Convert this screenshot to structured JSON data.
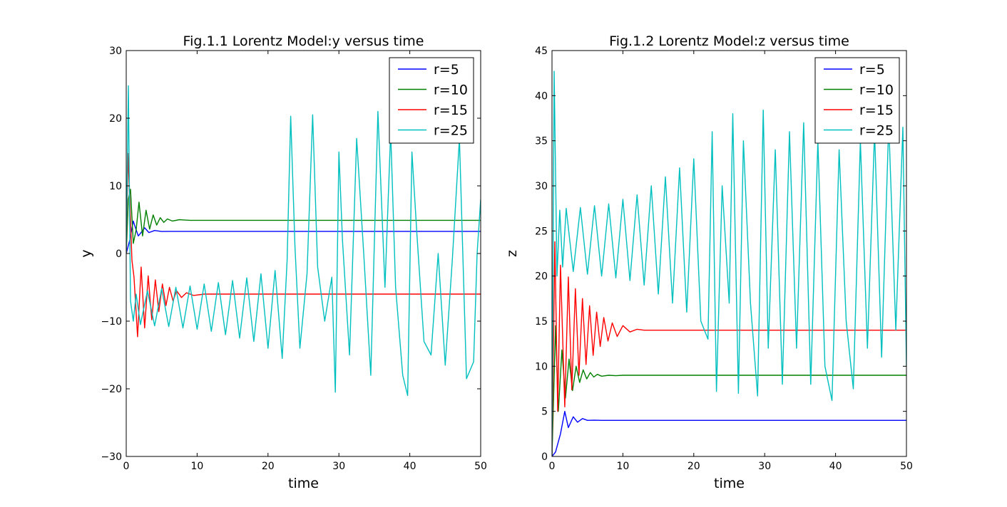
{
  "chart_data": [
    {
      "type": "line",
      "title": "Fig.1.1 Lorentz Model:y versus time",
      "xlabel": "time",
      "ylabel": "y",
      "xlim": [
        0,
        50
      ],
      "ylim": [
        -30,
        30
      ],
      "xticks": [
        0,
        10,
        20,
        30,
        40,
        50
      ],
      "yticks": [
        -30,
        -20,
        -10,
        0,
        10,
        20,
        30
      ],
      "ytick_labels": [
        "−30",
        "−20",
        "−10",
        "0",
        "10",
        "20",
        "30"
      ],
      "legend": "top-right",
      "grid": false,
      "series": [
        {
          "name": "r=5",
          "color": "#0000ff",
          "x": [
            0,
            0.5,
            1,
            1.3,
            1.7,
            2.1,
            2.6,
            3.2,
            4,
            5,
            6,
            50
          ],
          "y": [
            0,
            2,
            4.8,
            3.8,
            2.6,
            3.1,
            3.8,
            3.1,
            3.4,
            3.25,
            3.27,
            3.27
          ]
        },
        {
          "name": "r=10",
          "color": "#008000",
          "x": [
            0,
            0.3,
            0.6,
            1.0,
            1.4,
            1.8,
            2.3,
            2.8,
            3.3,
            3.8,
            4.3,
            4.8,
            5.3,
            5.8,
            6.5,
            7.5,
            9,
            50
          ],
          "y": [
            0,
            8,
            9.5,
            1.5,
            3.5,
            7.6,
            2.6,
            6.4,
            3.6,
            5.7,
            4.2,
            5.3,
            4.6,
            5.1,
            4.8,
            5.0,
            4.9,
            4.9
          ]
        },
        {
          "name": "r=15",
          "color": "#ff0000",
          "x": [
            0,
            0.25,
            0.5,
            0.8,
            1.1,
            1.6,
            2.1,
            2.6,
            3.1,
            3.6,
            4.1,
            4.6,
            5.1,
            5.6,
            6.1,
            6.6,
            7.1,
            7.8,
            8.5,
            9.5,
            11,
            50
          ],
          "y": [
            0,
            14.8,
            8,
            -1,
            -3.5,
            -12.3,
            -2,
            -11,
            -3.3,
            -9.8,
            -3.9,
            -8.6,
            -4.5,
            -7.7,
            -5.0,
            -7.0,
            -5.5,
            -6.5,
            -5.8,
            -6.2,
            -6.0,
            -6.0
          ]
        },
        {
          "name": "r=25",
          "color": "#00bfbf",
          "x": [
            0,
            0.3,
            0.6,
            1.0,
            1.4,
            2,
            3,
            4,
            5,
            6,
            7,
            8,
            9,
            10,
            11,
            12,
            13,
            14,
            15,
            16,
            17,
            18,
            19,
            20,
            21,
            22,
            22.7,
            23.2,
            23.8,
            24.5,
            25.5,
            26.3,
            27,
            28,
            29,
            29.5,
            30,
            30.5,
            31.5,
            32.5,
            33.5,
            34.5,
            35.5,
            36.5,
            37.3,
            38,
            39,
            39.7,
            40.3,
            41,
            42,
            43,
            44,
            45,
            46,
            47,
            48,
            49,
            49.5,
            50
          ],
          "y": [
            0,
            24.8,
            -7,
            -10,
            -6,
            -10.5,
            -5.5,
            -10.7,
            -5.2,
            -10.8,
            -5.0,
            -11,
            -4.8,
            -11.2,
            -4.5,
            -11.5,
            -4.3,
            -12,
            -4,
            -12.5,
            -3.6,
            -13,
            -3,
            -14,
            -2.5,
            -15.5,
            -1,
            20.3,
            1,
            -14,
            -3,
            20.5,
            -2,
            -10,
            -3.5,
            -20.5,
            15,
            2,
            -15,
            17,
            0,
            -18,
            21,
            -5,
            18,
            -5,
            -18,
            -21,
            15,
            3,
            -13,
            -15,
            0,
            -16.5,
            -1,
            17,
            -18.5,
            -16,
            0,
            8
          ]
        }
      ]
    },
    {
      "type": "line",
      "title": "Fig.1.2 Lorentz Model:z versus time",
      "xlabel": "time",
      "ylabel": "z",
      "xlim": [
        0,
        50
      ],
      "ylim": [
        0,
        45
      ],
      "xticks": [
        0,
        10,
        20,
        30,
        40,
        50
      ],
      "yticks": [
        0,
        5,
        10,
        15,
        20,
        25,
        30,
        35,
        40,
        45
      ],
      "ytick_labels": [
        "0",
        "5",
        "10",
        "15",
        "20",
        "25",
        "30",
        "35",
        "40",
        "45"
      ],
      "legend": "top-right",
      "grid": false,
      "series": [
        {
          "name": "r=5",
          "color": "#0000ff",
          "x": [
            0,
            0.5,
            1.2,
            1.8,
            2.3,
            3,
            3.6,
            4.3,
            5,
            6,
            7,
            50
          ],
          "y": [
            0,
            0.5,
            2.5,
            5.0,
            3.2,
            4.4,
            3.8,
            4.2,
            4.0,
            4.02,
            4.0,
            4.0
          ]
        },
        {
          "name": "r=10",
          "color": "#008000",
          "x": [
            0,
            0.5,
            0.9,
            1.4,
            1.9,
            2.4,
            2.9,
            3.4,
            3.9,
            4.4,
            4.9,
            5.4,
            5.9,
            6.4,
            7,
            8,
            9,
            10,
            50
          ],
          "y": [
            0,
            14.5,
            5,
            11.8,
            6.5,
            10.8,
            7.3,
            10.0,
            8.2,
            9.6,
            8.6,
            9.3,
            8.8,
            9.1,
            8.9,
            9.0,
            8.95,
            9.0,
            9.0
          ]
        },
        {
          "name": "r=15",
          "color": "#ff0000",
          "x": [
            0,
            0.4,
            0.8,
            1.2,
            1.8,
            2.3,
            2.8,
            3.3,
            3.8,
            4.3,
            4.8,
            5.3,
            5.8,
            6.3,
            6.8,
            7.3,
            7.9,
            8.5,
            9.2,
            10,
            11,
            12,
            13,
            50
          ],
          "y": [
            0,
            23.8,
            5,
            21.2,
            5.5,
            19.9,
            7.4,
            18.6,
            9,
            17.5,
            10.2,
            16.7,
            11.2,
            16,
            12.2,
            15.4,
            12.8,
            14.8,
            13.3,
            14.5,
            13.8,
            14.1,
            14.0,
            14.0
          ]
        },
        {
          "name": "r=25",
          "color": "#00bfbf",
          "x": [
            0,
            0.3,
            0.7,
            1.1,
            1.5,
            2,
            3,
            4,
            5,
            6,
            7,
            8,
            9,
            10,
            11,
            12,
            13,
            14,
            15,
            16,
            17,
            18,
            19,
            20,
            21,
            22,
            22.6,
            23.2,
            24,
            25,
            25.5,
            26.3,
            27,
            28,
            29,
            29.8,
            30.5,
            31.5,
            32.5,
            33.5,
            34.5,
            35.5,
            36.5,
            37.5,
            38.5,
            39.5,
            40.5,
            41.5,
            42.5,
            43.5,
            44.5,
            45.5,
            46.5,
            47.5,
            48.5,
            49.5,
            50
          ],
          "y": [
            0,
            42.7,
            20,
            27.3,
            21,
            27.5,
            20.5,
            27.6,
            20.2,
            27.8,
            20,
            28,
            19.8,
            28.5,
            19.5,
            29,
            19,
            30,
            18,
            31,
            17,
            32,
            16,
            33,
            15,
            13,
            36,
            7.2,
            30,
            17,
            38,
            7,
            35,
            17,
            6.7,
            38.4,
            12,
            34,
            8,
            36,
            12,
            37,
            8,
            35,
            10,
            6.2,
            34,
            15,
            7.5,
            35,
            12,
            36,
            11,
            37,
            14,
            36.5,
            10
          ]
        }
      ]
    }
  ]
}
